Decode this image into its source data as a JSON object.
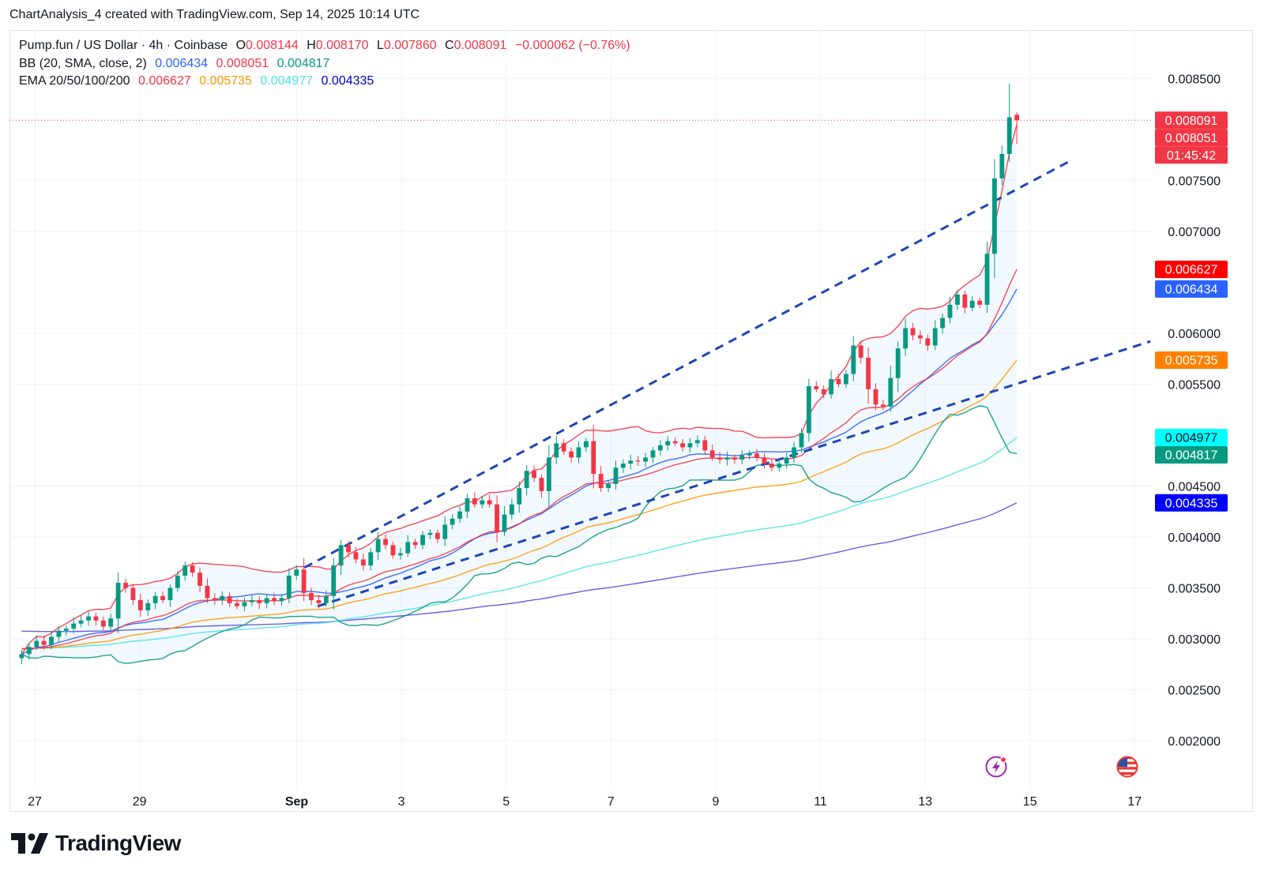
{
  "header": {
    "caption": "ChartAnalysis_4 created with TradingView.com, Sep 14, 2025 10:14 UTC"
  },
  "legend": {
    "symbol": "Pump.fun / US Dollar · 4h · Coinbase",
    "ohlc": [
      {
        "k": "O",
        "v": "0.008144"
      },
      {
        "k": "H",
        "v": "0.008170"
      },
      {
        "k": "L",
        "v": "0.007860"
      },
      {
        "k": "C",
        "v": "0.008091"
      }
    ],
    "change": "−0.000062 (−0.76%)",
    "bb_label": "BB (20, SMA, close, 2)",
    "bb_values": [
      "0.006434",
      "0.008051",
      "0.004817"
    ],
    "ema_label": "EMA 20/50/100/200",
    "ema_values": [
      "0.006627",
      "0.005735",
      "0.004977",
      "0.004335"
    ]
  },
  "colors": {
    "up": "#089981",
    "down": "#f23645",
    "bb_basis": "#2962ff",
    "bb_upper": "#f23645",
    "bb_lower": "#089981",
    "ema20": "#f23645",
    "ema50": "#ff9800",
    "ema100": "#4de2e8",
    "ema200": "#5b4fd8",
    "trend": "#1f45b5"
  },
  "price_tags": [
    {
      "text": "0.008091",
      "value": 0.008091,
      "color": "#f23645"
    },
    {
      "text": "01:45:42",
      "value": 0.00795,
      "color": "#f23645"
    },
    {
      "text": "0.008051",
      "value": 0.008051,
      "color": "#f23645"
    },
    {
      "text": "0.006627",
      "value": 0.006627,
      "color": "#ff0000"
    },
    {
      "text": "0.006434",
      "value": 0.006434,
      "color": "#2962ff"
    },
    {
      "text": "0.005735",
      "value": 0.005735,
      "color": "#ff8000"
    },
    {
      "text": "0.004977",
      "value": 0.004977,
      "color": "#00ffff"
    },
    {
      "text": "0.004817",
      "value": 0.004817,
      "color": "#089981"
    },
    {
      "text": "0.004335",
      "value": 0.004335,
      "color": "#0000ff"
    }
  ],
  "icons": [
    "lightning-icon",
    "us-flag-icon"
  ],
  "brand": {
    "name": "TradingView"
  },
  "chart_data": {
    "type": "candlestick",
    "symbol": "PUMP/USD",
    "interval": "4h",
    "exchange": "Coinbase",
    "y_ticks": [
      "0.008500",
      "0.007500",
      "0.007000",
      "0.006000",
      "0.005500",
      "0.004500",
      "0.004000",
      "0.003500",
      "0.003000",
      "0.002500",
      "0.002000"
    ],
    "x_ticks": [
      {
        "label": "27",
        "day": 0
      },
      {
        "label": "29",
        "day": 2
      },
      {
        "label": "Sep",
        "day": 5
      },
      {
        "label": "3",
        "day": 7
      },
      {
        "label": "5",
        "day": 9
      },
      {
        "label": "7",
        "day": 11
      },
      {
        "label": "9",
        "day": 13
      },
      {
        "label": "11",
        "day": 15
      },
      {
        "label": "13",
        "day": 17
      },
      {
        "label": "15",
        "day": 19
      },
      {
        "label": "17",
        "day": 21
      }
    ],
    "ylim": [
      0.00175,
      0.0088
    ],
    "xlim": [
      -0.45,
      21.15
    ],
    "close_sequence": [
      0.00285,
      0.00292,
      0.00298,
      0.00294,
      0.00302,
      0.00308,
      0.0031,
      0.00315,
      0.00318,
      0.00322,
      0.00318,
      0.00312,
      0.0032,
      0.00355,
      0.0035,
      0.00338,
      0.00328,
      0.00335,
      0.00342,
      0.00338,
      0.0035,
      0.00362,
      0.00372,
      0.00365,
      0.00352,
      0.0034,
      0.00338,
      0.00342,
      0.00335,
      0.00332,
      0.00336,
      0.00338,
      0.00335,
      0.0034,
      0.00337,
      0.0034,
      0.00362,
      0.00368,
      0.00345,
      0.00338,
      0.00335,
      0.00342,
      0.00372,
      0.00392,
      0.00385,
      0.00378,
      0.00372,
      0.00385,
      0.00398,
      0.00392,
      0.00382,
      0.00384,
      0.00395,
      0.00392,
      0.00402,
      0.00404,
      0.00398,
      0.00412,
      0.00418,
      0.00425,
      0.00438,
      0.00432,
      0.00436,
      0.00432,
      0.00405,
      0.00422,
      0.00432,
      0.00448,
      0.00465,
      0.00458,
      0.00445,
      0.00478,
      0.00492,
      0.00484,
      0.00478,
      0.00488,
      0.00494,
      0.00462,
      0.00448,
      0.00452,
      0.00468,
      0.00472,
      0.00475,
      0.00474,
      0.00478,
      0.00485,
      0.0049,
      0.00494,
      0.00492,
      0.00488,
      0.00492,
      0.00495,
      0.00485,
      0.00478,
      0.00476,
      0.00478,
      0.00476,
      0.0048,
      0.00482,
      0.00478,
      0.00472,
      0.00468,
      0.00472,
      0.00478,
      0.00488,
      0.00502,
      0.00548,
      0.00545,
      0.0054,
      0.00555,
      0.0055,
      0.0056,
      0.00588,
      0.00576,
      0.00545,
      0.0053,
      0.00528,
      0.00556,
      0.00585,
      0.00605,
      0.00598,
      0.00595,
      0.00588,
      0.00605,
      0.00615,
      0.00628,
      0.00638,
      0.00625,
      0.00632,
      0.00628,
      0.00678,
      0.00752,
      0.00776,
      0.00812,
      0.00809
    ],
    "indicators": {
      "bb_basis_last": 0.006434,
      "bb_upper_last": 0.008051,
      "bb_lower_last": 0.004817,
      "ema20_last": 0.006627,
      "ema50_last": 0.005735,
      "ema100_last": 0.004977,
      "ema200_last": 0.004335
    },
    "trendlines": [
      {
        "from": {
          "day": 5.15,
          "price": 0.0037
        },
        "to": {
          "day": 19.8,
          "price": 0.0077
        }
      },
      {
        "from": {
          "day": 5.4,
          "price": 0.00332
        },
        "to": {
          "day": 21.3,
          "price": 0.00592
        }
      }
    ]
  }
}
